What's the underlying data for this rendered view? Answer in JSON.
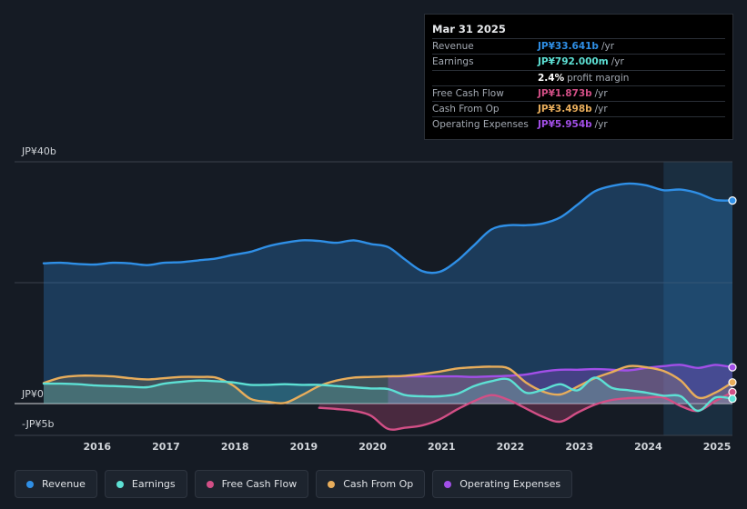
{
  "colors": {
    "revenue": "#2f8fe6",
    "earnings": "#5de0d4",
    "fcf": "#d24f86",
    "cfo": "#e8ad5b",
    "opex": "#a24fe8"
  },
  "tooltip": {
    "date": "Mar 31 2025",
    "rows": [
      {
        "label": "Revenue",
        "value": "JP¥33.641b",
        "unit": "/yr",
        "color": "#2f8fe6"
      },
      {
        "label": "Earnings",
        "value": "JP¥792.000m",
        "unit": "/yr",
        "color": "#5de0d4"
      },
      {
        "label": "",
        "value": "2.4%",
        "unit": "profit margin",
        "color": "#ffffff"
      },
      {
        "label": "Free Cash Flow",
        "value": "JP¥1.873b",
        "unit": "/yr",
        "color": "#d24f86"
      },
      {
        "label": "Cash From Op",
        "value": "JP¥3.498b",
        "unit": "/yr",
        "color": "#e8ad5b"
      },
      {
        "label": "Operating Expenses",
        "value": "JP¥5.954b",
        "unit": "/yr",
        "color": "#a24fe8"
      }
    ]
  },
  "legend": [
    {
      "label": "Revenue",
      "color": "#2f8fe6"
    },
    {
      "label": "Earnings",
      "color": "#5de0d4"
    },
    {
      "label": "Free Cash Flow",
      "color": "#d24f86"
    },
    {
      "label": "Cash From Op",
      "color": "#e8ad5b"
    },
    {
      "label": "Operating Expenses",
      "color": "#a24fe8"
    }
  ],
  "chart_data": {
    "type": "line",
    "title": "",
    "xlabel": "",
    "ylabel": "",
    "unit": "JP¥ billions",
    "ylim": [
      -5,
      40
    ],
    "xlim": [
      2015.25,
      2025.25
    ],
    "y_tick_labels": [
      {
        "value": 40,
        "label": "JP¥40b"
      },
      {
        "value": 0,
        "label": "JP¥0"
      },
      {
        "value": -5,
        "label": "-JP¥5b"
      }
    ],
    "x_ticks": [
      2016,
      2017,
      2018,
      2019,
      2020,
      2021,
      2022,
      2023,
      2024,
      2025
    ],
    "x_tick_labels": [
      "2016",
      "2017",
      "2018",
      "2019",
      "2020",
      "2021",
      "2022",
      "2023",
      "2024",
      "2025"
    ],
    "highlight_from": 2024.25,
    "series": [
      {
        "name": "Revenue",
        "key": "revenue",
        "points": [
          [
            2015.25,
            23.2
          ],
          [
            2015.5,
            23.3
          ],
          [
            2015.75,
            23.1
          ],
          [
            2016.0,
            23.0
          ],
          [
            2016.25,
            23.3
          ],
          [
            2016.5,
            23.2
          ],
          [
            2016.75,
            22.9
          ],
          [
            2017.0,
            23.3
          ],
          [
            2017.25,
            23.4
          ],
          [
            2017.5,
            23.7
          ],
          [
            2017.75,
            24.0
          ],
          [
            2018.0,
            24.6
          ],
          [
            2018.25,
            25.1
          ],
          [
            2018.5,
            26.0
          ],
          [
            2018.75,
            26.6
          ],
          [
            2019.0,
            27.0
          ],
          [
            2019.25,
            26.9
          ],
          [
            2019.5,
            26.6
          ],
          [
            2019.75,
            27.0
          ],
          [
            2020.0,
            26.4
          ],
          [
            2020.25,
            25.9
          ],
          [
            2020.5,
            23.8
          ],
          [
            2020.75,
            21.9
          ],
          [
            2021.0,
            21.8
          ],
          [
            2021.25,
            23.6
          ],
          [
            2021.5,
            26.2
          ],
          [
            2021.75,
            28.8
          ],
          [
            2022.0,
            29.5
          ],
          [
            2022.25,
            29.5
          ],
          [
            2022.5,
            29.8
          ],
          [
            2022.75,
            30.8
          ],
          [
            2023.0,
            32.9
          ],
          [
            2023.25,
            35.1
          ],
          [
            2023.5,
            36.0
          ],
          [
            2023.75,
            36.4
          ],
          [
            2024.0,
            36.1
          ],
          [
            2024.25,
            35.3
          ],
          [
            2024.5,
            35.4
          ],
          [
            2024.75,
            34.8
          ],
          [
            2025.0,
            33.7
          ],
          [
            2025.25,
            33.6
          ]
        ]
      },
      {
        "name": "Earnings",
        "key": "earnings",
        "points": [
          [
            2015.25,
            3.3
          ],
          [
            2015.5,
            3.3
          ],
          [
            2015.75,
            3.2
          ],
          [
            2016.0,
            3.0
          ],
          [
            2016.25,
            2.9
          ],
          [
            2016.5,
            2.8
          ],
          [
            2016.75,
            2.7
          ],
          [
            2017.0,
            3.3
          ],
          [
            2017.25,
            3.6
          ],
          [
            2017.5,
            3.8
          ],
          [
            2017.75,
            3.7
          ],
          [
            2018.0,
            3.5
          ],
          [
            2018.25,
            3.1
          ],
          [
            2018.5,
            3.1
          ],
          [
            2018.75,
            3.2
          ],
          [
            2019.0,
            3.1
          ],
          [
            2019.25,
            3.1
          ],
          [
            2019.5,
            2.9
          ],
          [
            2019.75,
            2.7
          ],
          [
            2020.0,
            2.5
          ],
          [
            2020.25,
            2.4
          ],
          [
            2020.5,
            1.4
          ],
          [
            2020.75,
            1.2
          ],
          [
            2021.0,
            1.2
          ],
          [
            2021.25,
            1.6
          ],
          [
            2021.5,
            2.9
          ],
          [
            2021.75,
            3.7
          ],
          [
            2022.0,
            4.0
          ],
          [
            2022.25,
            1.8
          ],
          [
            2022.5,
            2.3
          ],
          [
            2022.75,
            3.2
          ],
          [
            2023.0,
            2.2
          ],
          [
            2023.25,
            4.3
          ],
          [
            2023.5,
            2.6
          ],
          [
            2023.75,
            2.2
          ],
          [
            2024.0,
            1.8
          ],
          [
            2024.25,
            1.3
          ],
          [
            2024.5,
            1.2
          ],
          [
            2024.75,
            -1.2
          ],
          [
            2025.0,
            1.0
          ],
          [
            2025.25,
            0.8
          ]
        ]
      },
      {
        "name": "Free Cash Flow",
        "key": "fcf",
        "points": [
          [
            2019.25,
            -0.7
          ],
          [
            2019.5,
            -0.9
          ],
          [
            2019.75,
            -1.2
          ],
          [
            2020.0,
            -2.0
          ],
          [
            2020.25,
            -4.2
          ],
          [
            2020.5,
            -4.0
          ],
          [
            2020.75,
            -3.6
          ],
          [
            2021.0,
            -2.6
          ],
          [
            2021.25,
            -1.0
          ],
          [
            2021.5,
            0.4
          ],
          [
            2021.75,
            1.4
          ],
          [
            2022.0,
            0.6
          ],
          [
            2022.25,
            -0.8
          ],
          [
            2022.5,
            -2.2
          ],
          [
            2022.75,
            -3.0
          ],
          [
            2023.0,
            -1.5
          ],
          [
            2023.25,
            -0.2
          ],
          [
            2023.5,
            0.6
          ],
          [
            2023.75,
            0.9
          ],
          [
            2024.0,
            1.0
          ],
          [
            2024.25,
            1.0
          ],
          [
            2024.5,
            -0.4
          ],
          [
            2024.75,
            -1.2
          ],
          [
            2025.0,
            0.4
          ],
          [
            2025.25,
            1.9
          ]
        ]
      },
      {
        "name": "Cash From Op",
        "key": "cfo",
        "points": [
          [
            2015.25,
            3.4
          ],
          [
            2015.5,
            4.3
          ],
          [
            2015.75,
            4.6
          ],
          [
            2016.0,
            4.6
          ],
          [
            2016.25,
            4.5
          ],
          [
            2016.5,
            4.2
          ],
          [
            2016.75,
            4.0
          ],
          [
            2017.0,
            4.2
          ],
          [
            2017.25,
            4.4
          ],
          [
            2017.5,
            4.4
          ],
          [
            2017.75,
            4.3
          ],
          [
            2018.0,
            3.0
          ],
          [
            2018.25,
            0.8
          ],
          [
            2018.5,
            0.3
          ],
          [
            2018.75,
            0.1
          ],
          [
            2019.0,
            1.4
          ],
          [
            2019.25,
            2.9
          ],
          [
            2019.5,
            3.8
          ],
          [
            2019.75,
            4.3
          ],
          [
            2020.0,
            4.4
          ],
          [
            2020.25,
            4.5
          ],
          [
            2020.5,
            4.6
          ],
          [
            2020.75,
            4.9
          ],
          [
            2021.0,
            5.3
          ],
          [
            2021.25,
            5.8
          ],
          [
            2021.5,
            6.0
          ],
          [
            2021.75,
            6.1
          ],
          [
            2022.0,
            5.8
          ],
          [
            2022.25,
            3.5
          ],
          [
            2022.5,
            2.0
          ],
          [
            2022.75,
            1.5
          ],
          [
            2023.0,
            2.8
          ],
          [
            2023.25,
            4.2
          ],
          [
            2023.5,
            5.2
          ],
          [
            2023.75,
            6.2
          ],
          [
            2024.0,
            6.0
          ],
          [
            2024.25,
            5.4
          ],
          [
            2024.5,
            3.8
          ],
          [
            2024.75,
            1.0
          ],
          [
            2025.0,
            1.8
          ],
          [
            2025.25,
            3.5
          ]
        ]
      },
      {
        "name": "Operating Expenses",
        "key": "opex",
        "points": [
          [
            2020.25,
            4.5
          ],
          [
            2020.5,
            4.5
          ],
          [
            2020.75,
            4.5
          ],
          [
            2021.0,
            4.5
          ],
          [
            2021.25,
            4.5
          ],
          [
            2021.5,
            4.4
          ],
          [
            2021.75,
            4.5
          ],
          [
            2022.0,
            4.6
          ],
          [
            2022.25,
            4.8
          ],
          [
            2022.5,
            5.3
          ],
          [
            2022.75,
            5.6
          ],
          [
            2023.0,
            5.6
          ],
          [
            2023.25,
            5.7
          ],
          [
            2023.5,
            5.6
          ],
          [
            2023.75,
            5.5
          ],
          [
            2024.0,
            5.9
          ],
          [
            2024.25,
            6.2
          ],
          [
            2024.5,
            6.4
          ],
          [
            2024.75,
            5.9
          ],
          [
            2025.0,
            6.4
          ],
          [
            2025.25,
            6.0
          ]
        ]
      }
    ]
  }
}
